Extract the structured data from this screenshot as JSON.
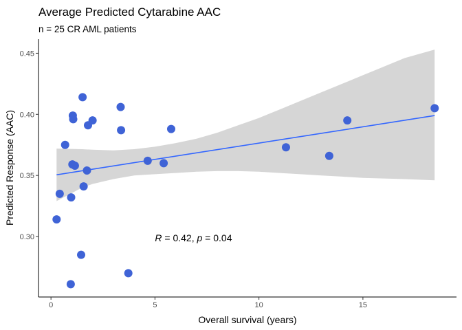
{
  "chart_data": {
    "type": "scatter",
    "title": "Average Predicted Cytarabine AAC",
    "subtitle": "n = 25 CR AML patients",
    "xlabel": "Overall survival (years)",
    "ylabel": "Predicted Response (AAC)",
    "xlim": [
      -0.6,
      19.5
    ],
    "ylim": [
      0.2505,
      0.4615
    ],
    "x_ticks": [
      0,
      5,
      10,
      15
    ],
    "y_ticks": [
      0.3,
      0.35,
      0.4,
      0.45
    ],
    "x_tick_labels": [
      "0",
      "5",
      "10",
      "15"
    ],
    "y_tick_labels": [
      "0.30",
      "0.35",
      "0.40",
      "0.45"
    ],
    "grid": false,
    "points": [
      {
        "x": 0.27,
        "y": 0.314
      },
      {
        "x": 0.42,
        "y": 0.335
      },
      {
        "x": 0.68,
        "y": 0.375
      },
      {
        "x": 0.95,
        "y": 0.261
      },
      {
        "x": 0.97,
        "y": 0.332
      },
      {
        "x": 1.03,
        "y": 0.359
      },
      {
        "x": 1.05,
        "y": 0.399
      },
      {
        "x": 1.07,
        "y": 0.396
      },
      {
        "x": 1.15,
        "y": 0.358
      },
      {
        "x": 1.45,
        "y": 0.285
      },
      {
        "x": 1.52,
        "y": 0.414
      },
      {
        "x": 1.57,
        "y": 0.341
      },
      {
        "x": 1.73,
        "y": 0.354
      },
      {
        "x": 1.78,
        "y": 0.391
      },
      {
        "x": 2.0,
        "y": 0.395
      },
      {
        "x": 3.35,
        "y": 0.406
      },
      {
        "x": 3.37,
        "y": 0.387
      },
      {
        "x": 3.72,
        "y": 0.27
      },
      {
        "x": 4.65,
        "y": 0.362
      },
      {
        "x": 5.42,
        "y": 0.36
      },
      {
        "x": 5.78,
        "y": 0.388
      },
      {
        "x": 11.3,
        "y": 0.373
      },
      {
        "x": 13.38,
        "y": 0.366
      },
      {
        "x": 14.25,
        "y": 0.395
      },
      {
        "x": 18.45,
        "y": 0.405
      }
    ],
    "trend_line": {
      "x": [
        0.27,
        18.45
      ],
      "y": [
        0.3505,
        0.399
      ]
    },
    "confidence_band": {
      "x": [
        0.27,
        1.5,
        2.0,
        3.0,
        4.0,
        5.0,
        6.0,
        7.0,
        8.0,
        9.0,
        10.0,
        11.0,
        12.0,
        13.0,
        14.0,
        15.0,
        16.0,
        17.0,
        18.45
      ],
      "upper": [
        0.372,
        0.3715,
        0.371,
        0.3705,
        0.3715,
        0.3735,
        0.3765,
        0.38,
        0.385,
        0.391,
        0.397,
        0.404,
        0.411,
        0.418,
        0.425,
        0.432,
        0.439,
        0.446,
        0.453
      ],
      "lower": [
        0.329,
        0.34,
        0.343,
        0.347,
        0.35,
        0.351,
        0.352,
        0.353,
        0.3535,
        0.3535,
        0.353,
        0.352,
        0.351,
        0.35,
        0.349,
        0.348,
        0.3475,
        0.347,
        0.346
      ]
    },
    "annotation": {
      "r_label": "R",
      "r_value": " = 0.42, ",
      "p_label": "p",
      "p_value": " = 0.04",
      "x": 5.0,
      "y": 0.299
    },
    "colors": {
      "points": "#3f63d6",
      "line": "#3366ff",
      "band": "#d6d6d6",
      "axis": "#000000"
    }
  }
}
